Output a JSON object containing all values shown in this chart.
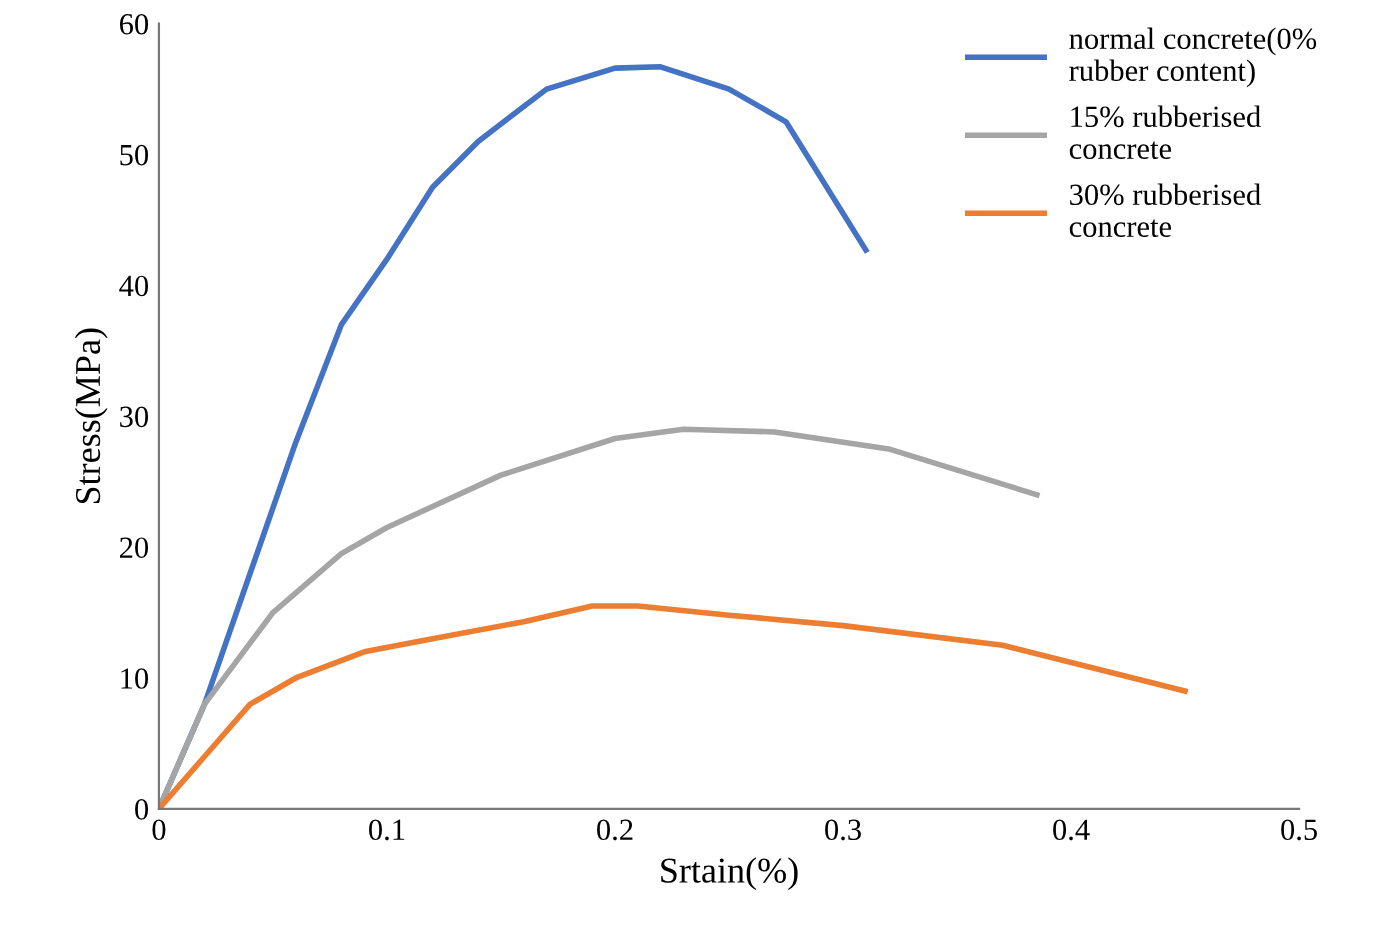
{
  "chart_data": {
    "type": "line",
    "xlabel": "Srtain(%)",
    "ylabel": "Stress(MPa)",
    "xlim": [
      0,
      0.5
    ],
    "xticks": [
      0,
      0.1,
      0.2,
      0.3,
      0.4,
      0.5
    ],
    "ylim": [
      0,
      60
    ],
    "yticks": [
      0,
      10,
      20,
      30,
      40,
      50,
      60
    ],
    "grid": false,
    "legend": "top right",
    "marker": "none",
    "line_style": "solid",
    "series": [
      {
        "name": "normal concrete(0%\nrubber content)",
        "color": "#4472c4",
        "x": [
          0,
          0.02,
          0.04,
          0.06,
          0.08,
          0.1,
          0.12,
          0.14,
          0.17,
          0.2,
          0.22,
          0.25,
          0.275,
          0.31
        ],
        "values": [
          0,
          8,
          18,
          28,
          37,
          42,
          47.5,
          51,
          55,
          56.6,
          56.7,
          55,
          52.5,
          42.7
        ]
      },
      {
        "name": "15% rubberised\nconcrete",
        "color": "#a5a5a5",
        "x": [
          0,
          0.02,
          0.05,
          0.08,
          0.1,
          0.15,
          0.2,
          0.23,
          0.27,
          0.32,
          0.385
        ],
        "values": [
          0,
          8,
          15,
          19.5,
          21.5,
          25.5,
          28.3,
          29,
          28.8,
          27.5,
          24
        ]
      },
      {
        "name": "30% rubberised\nconcrete",
        "color": "#ed7d31",
        "x": [
          0,
          0.02,
          0.04,
          0.06,
          0.09,
          0.12,
          0.16,
          0.19,
          0.21,
          0.25,
          0.3,
          0.37,
          0.45
        ],
        "values": [
          0,
          4,
          8,
          10,
          12,
          13,
          14.3,
          15.5,
          15.5,
          14.8,
          14,
          12.5,
          9
        ]
      }
    ]
  }
}
